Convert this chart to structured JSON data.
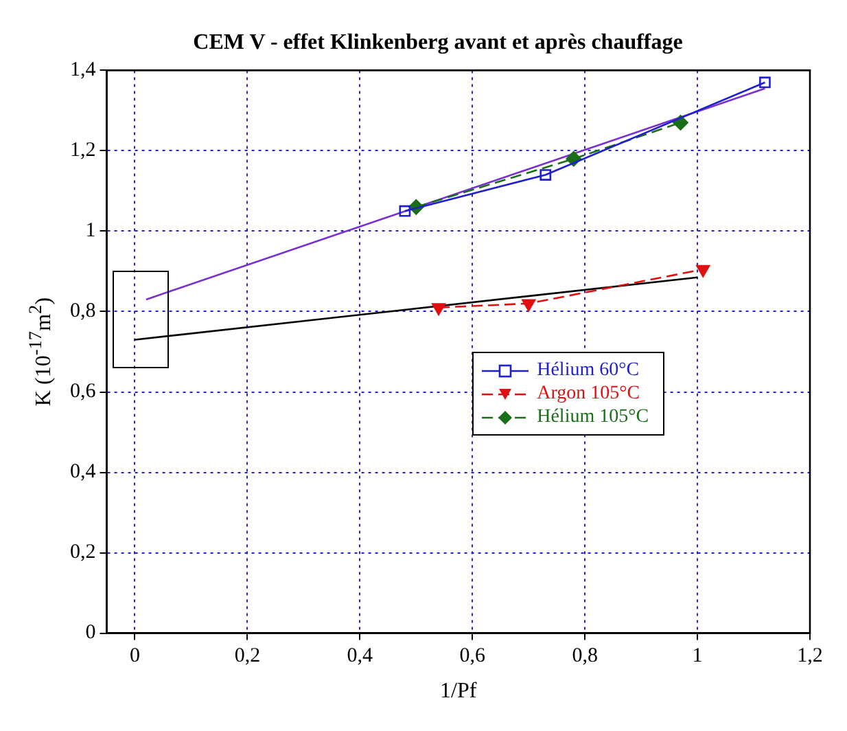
{
  "chart_data": {
    "type": "line",
    "title": "CEM V - effet Klinkenberg avant et après chauffage",
    "xlabel": "1/Pf",
    "ylabel": "K (10$^{-17}$m$^{2}$)",
    "xlim": [
      -0.05,
      1.2
    ],
    "ylim": [
      0,
      1.4
    ],
    "xticks": [
      0,
      {
        "value": 0.2,
        "label": "0,2"
      },
      {
        "value": 0.4,
        "label": "0,4"
      },
      {
        "value": 0.6,
        "label": "0,6"
      },
      {
        "value": 0.8,
        "label": "0,8"
      },
      1,
      {
        "value": 1.2,
        "label": "1,2"
      }
    ],
    "yticks": [
      0,
      {
        "value": 0.2,
        "label": "0,2"
      },
      {
        "value": 0.4,
        "label": "0,4"
      },
      {
        "value": 0.6,
        "label": "0,6"
      },
      {
        "value": 0.8,
        "label": "0,8"
      },
      1,
      {
        "value": 1.2,
        "label": "1,2"
      },
      {
        "value": 1.4,
        "label": "1,4"
      }
    ],
    "grid": true,
    "legend": "center",
    "series": [
      {
        "name": "Hélium 60°C",
        "color": "#1f1fcf",
        "marker": "square",
        "line_style": "solid",
        "x": [
          0.48,
          0.73,
          1.12
        ],
        "values": [
          1.05,
          1.14,
          1.37
        ]
      },
      {
        "name": "Argon 105°C",
        "color": "#e01010",
        "marker": "triangle",
        "line_style": "dashed",
        "x": [
          0.54,
          0.7,
          1.01
        ],
        "values": [
          0.81,
          0.82,
          0.905
        ]
      },
      {
        "name": "Hélium 105°C",
        "color": "#1a6e1a",
        "marker": "diamond",
        "line_style": "dashed",
        "x": [
          0.5,
          0.78,
          0.97
        ],
        "values": [
          1.06,
          1.18,
          1.27
        ]
      },
      {
        "color": "#7a2fd0",
        "marker": "none",
        "line_style": "solid",
        "x": [
          0.02,
          1.12
        ],
        "values": [
          0.83,
          1.355
        ]
      },
      {
        "color": "#000000",
        "marker": "none",
        "line_style": "solid",
        "x": [
          0,
          1.0
        ],
        "values": [
          0.73,
          0.885
        ]
      }
    ]
  }
}
